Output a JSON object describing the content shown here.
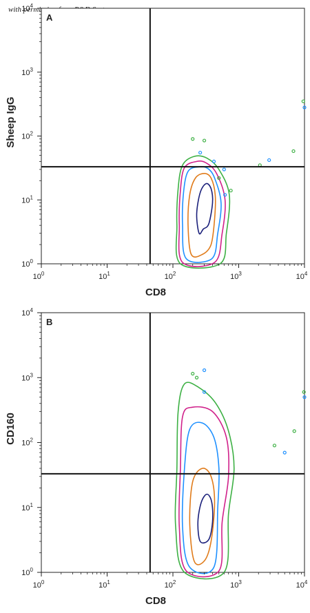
{
  "watermark": "with permission from R&D Systems",
  "colors": {
    "axis": "#222222",
    "quadrant_line": "#111111",
    "contour_levels": [
      "#3cb043",
      "#d0208a",
      "#1e90ff",
      "#e07b1a",
      "#1a1f7a"
    ]
  },
  "chart_data": [
    {
      "type": "contour",
      "panel_label": "A",
      "xlabel": "CD8",
      "ylabel": "Sheep IgG",
      "x_scale": "log",
      "y_scale": "log",
      "xlim": [
        1,
        10000
      ],
      "ylim": [
        1,
        10000
      ],
      "x_ticks": [
        {
          "base": "10",
          "exp": "0"
        },
        {
          "base": "10",
          "exp": "1"
        },
        {
          "base": "10",
          "exp": "2"
        },
        {
          "base": "10",
          "exp": "3"
        },
        {
          "base": "10",
          "exp": "4"
        }
      ],
      "y_ticks": [
        {
          "base": "10",
          "exp": "0"
        },
        {
          "base": "10",
          "exp": "1"
        },
        {
          "base": "10",
          "exp": "2"
        },
        {
          "base": "10",
          "exp": "3"
        },
        {
          "base": "10",
          "exp": "4"
        }
      ],
      "quadrant_gates": {
        "x": 45,
        "y": 33
      },
      "population": {
        "x_center": 300,
        "y_center": 6,
        "x_range": [
          100,
          800
        ],
        "y_range": [
          1,
          40
        ]
      },
      "contours": [
        {
          "level": 1,
          "points": [
            [
              130,
              1
            ],
            [
              115,
              4
            ],
            [
              120,
              15
            ],
            [
              140,
              35
            ],
            [
              210,
              48
            ],
            [
              330,
              45
            ],
            [
              500,
              30
            ],
            [
              720,
              12
            ],
            [
              650,
              3
            ],
            [
              520,
              1
            ]
          ]
        },
        {
          "level": 2,
          "points": [
            [
              140,
              1.05
            ],
            [
              125,
              4
            ],
            [
              130,
              14
            ],
            [
              150,
              32
            ],
            [
              230,
              40
            ],
            [
              320,
              38
            ],
            [
              460,
              26
            ],
            [
              620,
              10
            ],
            [
              560,
              3
            ],
            [
              430,
              1.05
            ]
          ]
        },
        {
          "level": 3,
          "points": [
            [
              160,
              1.2
            ],
            [
              140,
              4
            ],
            [
              145,
              13
            ],
            [
              170,
              28
            ],
            [
              250,
              33
            ],
            [
              340,
              31
            ],
            [
              430,
              22
            ],
            [
              540,
              9
            ],
            [
              480,
              3
            ],
            [
              390,
              1.2
            ]
          ]
        },
        {
          "level": 4,
          "points": [
            [
              190,
              1.4
            ],
            [
              170,
              4
            ],
            [
              180,
              12
            ],
            [
              220,
              22
            ],
            [
              300,
              26
            ],
            [
              380,
              22
            ],
            [
              440,
              12
            ],
            [
              430,
              5
            ],
            [
              380,
              2
            ],
            [
              280,
              1.4
            ]
          ]
        },
        {
          "level": 5,
          "points": [
            [
              250,
              3
            ],
            [
              230,
              6
            ],
            [
              260,
              13
            ],
            [
              320,
              18
            ],
            [
              380,
              15
            ],
            [
              400,
              9
            ],
            [
              350,
              4.2
            ],
            [
              290,
              3.5
            ]
          ]
        }
      ],
      "outliers": [
        [
          200,
          90
        ],
        [
          260,
          55
        ],
        [
          300,
          85
        ],
        [
          420,
          40
        ],
        [
          500,
          22
        ],
        [
          600,
          30
        ],
        [
          2100,
          35
        ],
        [
          2900,
          42
        ],
        [
          6800,
          58
        ],
        [
          10000,
          280
        ],
        [
          9600,
          350
        ],
        [
          620,
          12
        ],
        [
          760,
          14
        ]
      ]
    },
    {
      "type": "contour",
      "panel_label": "B",
      "xlabel": "CD8",
      "ylabel": "CD160",
      "x_scale": "log",
      "y_scale": "log",
      "xlim": [
        1,
        10000
      ],
      "ylim": [
        1,
        10000
      ],
      "x_ticks": [
        {
          "base": "10",
          "exp": "0"
        },
        {
          "base": "10",
          "exp": "1"
        },
        {
          "base": "10",
          "exp": "2"
        },
        {
          "base": "10",
          "exp": "3"
        },
        {
          "base": "10",
          "exp": "4"
        }
      ],
      "y_ticks": [
        {
          "base": "10",
          "exp": "0"
        },
        {
          "base": "10",
          "exp": "1"
        },
        {
          "base": "10",
          "exp": "2"
        },
        {
          "base": "10",
          "exp": "3"
        },
        {
          "base": "10",
          "exp": "4"
        }
      ],
      "quadrant_gates": {
        "x": 45,
        "y": 33
      },
      "population": {
        "x_center": 300,
        "y_center": 6,
        "x_range": [
          100,
          1000
        ],
        "y_range": [
          1,
          1000
        ]
      },
      "contours": [
        {
          "level": 1,
          "points": [
            [
              150,
              1
            ],
            [
              110,
              5
            ],
            [
              115,
              40
            ],
            [
              120,
              300
            ],
            [
              150,
              800
            ],
            [
              250,
              700
            ],
            [
              450,
              400
            ],
            [
              700,
              150
            ],
            [
              850,
              40
            ],
            [
              700,
              8
            ],
            [
              600,
              1
            ]
          ]
        },
        {
          "level": 2,
          "points": [
            [
              160,
              1.05
            ],
            [
              125,
              5
            ],
            [
              130,
              40
            ],
            [
              140,
              250
            ],
            [
              200,
              350
            ],
            [
              400,
              300
            ],
            [
              650,
              120
            ],
            [
              700,
              30
            ],
            [
              560,
              6
            ],
            [
              500,
              1.05
            ]
          ]
        },
        {
          "level": 3,
          "points": [
            [
              180,
              1.2
            ],
            [
              140,
              5
            ],
            [
              150,
              40
            ],
            [
              180,
              160
            ],
            [
              280,
              200
            ],
            [
              420,
              120
            ],
            [
              500,
              40
            ],
            [
              480,
              10
            ],
            [
              420,
              1.2
            ]
          ]
        },
        {
          "level": 4,
          "points": [
            [
              210,
              1.5
            ],
            [
              180,
              6
            ],
            [
              200,
              25
            ],
            [
              280,
              40
            ],
            [
              380,
              30
            ],
            [
              430,
              12
            ],
            [
              380,
              3
            ],
            [
              300,
              1.5
            ]
          ]
        },
        {
          "level": 5,
          "points": [
            [
              260,
              3
            ],
            [
              240,
              6
            ],
            [
              270,
              12
            ],
            [
              330,
              16
            ],
            [
              390,
              12
            ],
            [
              400,
              6
            ],
            [
              350,
              3.2
            ]
          ]
        }
      ],
      "outliers": [
        [
          230,
          1000
        ],
        [
          300,
          600
        ],
        [
          200,
          1150
        ],
        [
          300,
          1300
        ],
        [
          3500,
          90
        ],
        [
          5000,
          70
        ],
        [
          7000,
          150
        ],
        [
          10000,
          500
        ],
        [
          9800,
          600
        ]
      ]
    }
  ]
}
